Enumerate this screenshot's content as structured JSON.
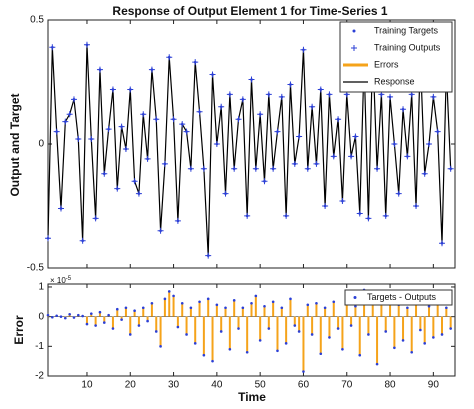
{
  "chart_data": [
    {
      "type": "response",
      "title": "Response of Output Element 1 for Time-Series 1",
      "ylabel": "Output and Target",
      "x": [
        1,
        2,
        3,
        4,
        5,
        6,
        7,
        8,
        9,
        10,
        11,
        12,
        13,
        14,
        15,
        16,
        17,
        18,
        19,
        20,
        21,
        22,
        23,
        24,
        25,
        26,
        27,
        28,
        29,
        30,
        31,
        32,
        33,
        34,
        35,
        36,
        37,
        38,
        39,
        40,
        41,
        42,
        43,
        44,
        45,
        46,
        47,
        48,
        49,
        50,
        51,
        52,
        53,
        54,
        55,
        56,
        57,
        58,
        59,
        60,
        61,
        62,
        63,
        64,
        65,
        66,
        67,
        68,
        69,
        70,
        71,
        72,
        73,
        74,
        75,
        76,
        77,
        78,
        79,
        80,
        81,
        82,
        83,
        84,
        85,
        86,
        87,
        88,
        89,
        90,
        91,
        92,
        93,
        94
      ],
      "values": [
        -0.38,
        0.39,
        0.05,
        -0.26,
        0.09,
        0.12,
        0.18,
        0.02,
        -0.39,
        0.4,
        0.02,
        -0.3,
        0.3,
        -0.12,
        0.06,
        0.22,
        -0.18,
        0.07,
        -0.02,
        0.22,
        -0.15,
        -0.2,
        0.12,
        -0.06,
        0.3,
        0.1,
        -0.35,
        -0.08,
        0.35,
        0.1,
        -0.31,
        0.08,
        0.05,
        -0.1,
        0.33,
        0.13,
        -0.1,
        -0.45,
        0.28,
        0.0,
        0.15,
        -0.2,
        0.2,
        -0.1,
        0.1,
        0.18,
        -0.29,
        0.26,
        -0.1,
        0.12,
        -0.15,
        0.2,
        -0.1,
        0.05,
        0.19,
        -0.29,
        0.24,
        -0.08,
        0.03,
        0.38,
        -0.1,
        0.15,
        -0.08,
        0.22,
        -0.25,
        0.2,
        -0.05,
        0.1,
        -0.23,
        0.2,
        -0.05,
        0.03,
        -0.28,
        0.33,
        -0.3,
        0.38,
        -0.1,
        0.2,
        -0.29,
        0.19,
        0.0,
        -0.2,
        0.14,
        -0.05,
        0.2,
        -0.25,
        0.35,
        -0.12,
        0.0,
        0.19,
        0.05,
        -0.4,
        0.3,
        -0.1
      ],
      "series": [
        {
          "name": "Training Targets",
          "color": "#2b3fd6",
          "marker": "dot"
        },
        {
          "name": "Training Outputs",
          "color": "#2b3fd6",
          "marker": "plus"
        },
        {
          "name": "Errors",
          "color": "#f5a31a",
          "marker": "line"
        },
        {
          "name": "Response",
          "color": "#000000",
          "marker": "line"
        }
      ],
      "xlim": [
        1,
        95
      ],
      "xticks": [
        10,
        20,
        30,
        40,
        50,
        60,
        70,
        80,
        90
      ],
      "ylim": [
        -0.5,
        0.5
      ],
      "yticks": [
        -0.5,
        0,
        0.5
      ]
    },
    {
      "type": "stem",
      "xlabel": "Time",
      "ylabel": "Error",
      "y_exponent": {
        "base": "× 10",
        "exp": "-5"
      },
      "x": [
        1,
        2,
        3,
        4,
        5,
        6,
        7,
        8,
        9,
        10,
        11,
        12,
        13,
        14,
        15,
        16,
        17,
        18,
        19,
        20,
        21,
        22,
        23,
        24,
        25,
        26,
        27,
        28,
        29,
        30,
        31,
        32,
        33,
        34,
        35,
        36,
        37,
        38,
        39,
        40,
        41,
        42,
        43,
        44,
        45,
        46,
        47,
        48,
        49,
        50,
        51,
        52,
        53,
        54,
        55,
        56,
        57,
        58,
        59,
        60,
        61,
        62,
        63,
        64,
        65,
        66,
        67,
        68,
        69,
        70,
        71,
        72,
        73,
        74,
        75,
        76,
        77,
        78,
        79,
        80,
        81,
        82,
        83,
        84,
        85,
        86,
        87,
        88,
        89,
        90,
        91,
        92,
        93,
        94
      ],
      "values": [
        0.05,
        -0.02,
        0.03,
        0.0,
        -0.05,
        0.08,
        -0.03,
        0.05,
        0.02,
        -0.25,
        0.1,
        -0.3,
        0.15,
        -0.2,
        0.05,
        -0.4,
        0.25,
        -0.1,
        0.3,
        -0.6,
        0.2,
        -0.3,
        0.3,
        -0.15,
        0.45,
        -0.5,
        -1.0,
        0.6,
        0.85,
        0.7,
        -0.35,
        0.45,
        -0.6,
        0.3,
        -0.9,
        0.5,
        -1.3,
        0.6,
        -1.5,
        0.4,
        -0.5,
        0.3,
        -1.1,
        0.55,
        -0.4,
        0.3,
        -1.2,
        0.45,
        0.7,
        -0.8,
        0.35,
        -0.4,
        0.5,
        -1.15,
        0.3,
        -0.9,
        0.6,
        -0.3,
        -0.5,
        -1.85,
        0.4,
        -0.6,
        0.45,
        -1.25,
        0.3,
        -0.7,
        0.5,
        -0.4,
        -1.1,
        0.6,
        -0.3,
        0.35,
        -1.3,
        0.9,
        -0.6,
        0.45,
        -1.6,
        0.7,
        -0.5,
        0.6,
        -1.05,
        0.4,
        -0.8,
        0.3,
        -1.2,
        0.55,
        -0.45,
        -0.9,
        0.35,
        -0.7,
        0.5,
        -0.6,
        0.3,
        -0.4
      ],
      "series": [
        {
          "name": "Targets - Outputs",
          "color": "#2b3fd6"
        }
      ],
      "stem_color": "#f5a31a",
      "xlim": [
        1,
        95
      ],
      "xticks": [
        10,
        20,
        30,
        40,
        50,
        60,
        70,
        80,
        90
      ],
      "ylim": [
        -2,
        1.1
      ],
      "yticks": [
        -2,
        -1,
        0,
        1
      ]
    }
  ]
}
